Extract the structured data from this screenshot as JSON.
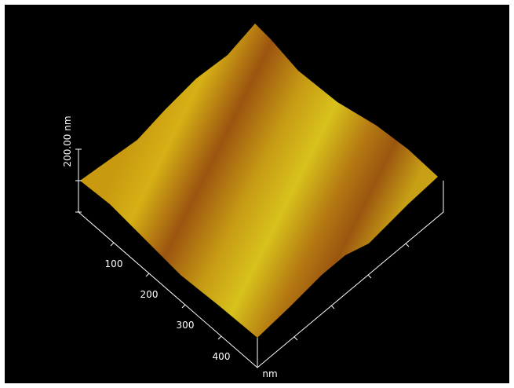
{
  "z_scale": {
    "label": "200.00 nm"
  },
  "x_axis": {
    "ticks": [
      "100",
      "200",
      "300",
      "400"
    ],
    "unit": "nm"
  }
}
